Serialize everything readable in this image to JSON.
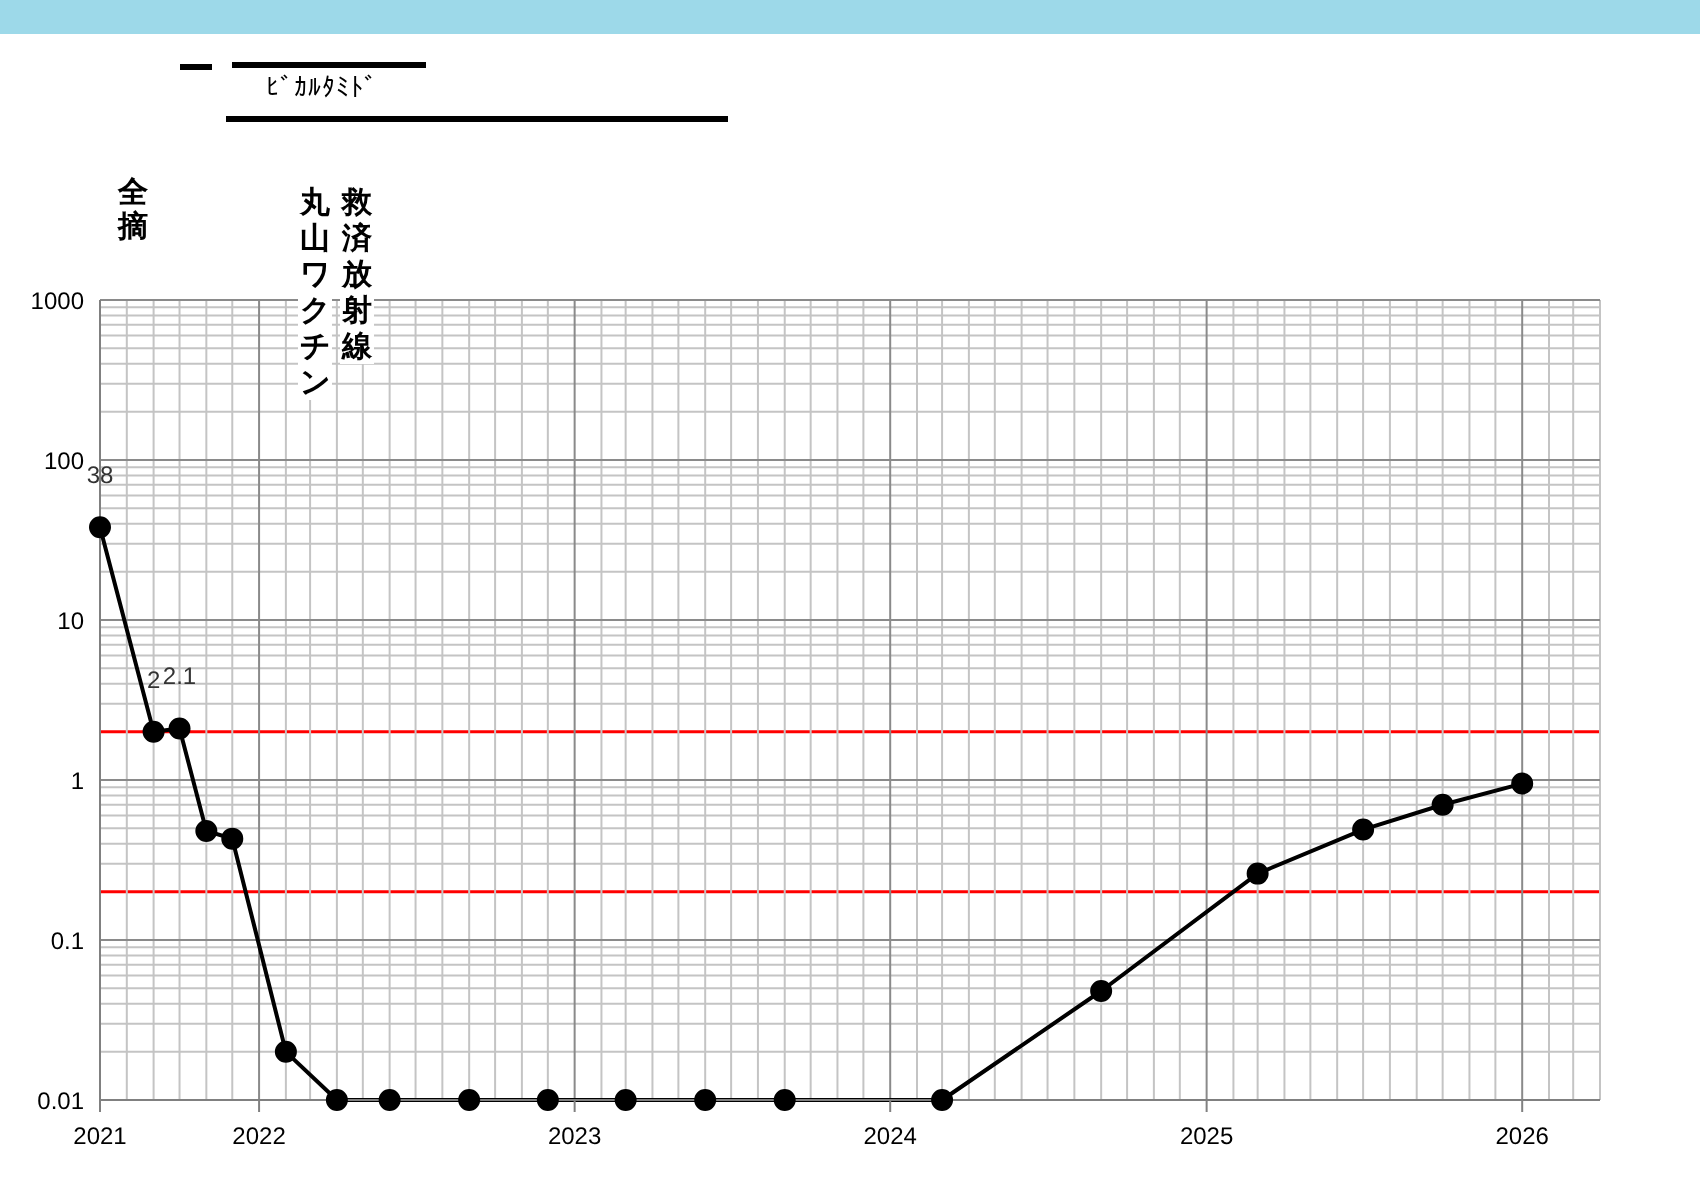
{
  "chart_data": {
    "type": "line",
    "annotations": [
      "ﾋﾞｶﾙﾀﾐﾄﾞ",
      "全摘",
      "丸山ワクチン",
      "救済放射線"
    ],
    "x": [
      "2021-07",
      "2021-09",
      "2021-10",
      "2021-11",
      "2021-12",
      "2022-02",
      "2022-04",
      "2022-06",
      "2022-09",
      "2022-12",
      "2023-03",
      "2023-06",
      "2023-09",
      "2024-03",
      "2024-09",
      "2025-03",
      "2025-07",
      "2025-10",
      "2026-01"
    ],
    "values": [
      38,
      2,
      2.1,
      0.48,
      0.43,
      0.02,
      0.01,
      0.01,
      0.01,
      0.01,
      0.01,
      0.01,
      0.01,
      0.01,
      0.048,
      0.26,
      0.49,
      0.7,
      0.95
    ],
    "value_labels": [
      "38",
      "2",
      "2.1",
      null,
      null,
      null,
      null,
      null,
      null,
      null,
      null,
      null,
      null,
      null,
      null,
      null,
      null,
      null,
      null
    ],
    "color": "#000000",
    "xlim": [
      "2021-07",
      "2026-04"
    ],
    "xticks": [
      {
        "value": "2021-07",
        "label": "2021"
      },
      {
        "value": "2021-08",
        "label": null
      },
      {
        "value": "2021-09",
        "label": null
      },
      {
        "value": "2021-10",
        "label": null
      },
      {
        "value": "2021-11",
        "label": null
      },
      {
        "value": "2021-12",
        "label": null
      },
      {
        "value": "2022-01",
        "label": "2022"
      },
      {
        "value": "2022-02",
        "label": null
      },
      {
        "value": "2022-03",
        "label": null
      },
      {
        "value": "2022-04",
        "label": null
      },
      {
        "value": "2022-05",
        "label": null
      },
      {
        "value": "2022-06",
        "label": null
      },
      {
        "value": "2022-07",
        "label": null
      },
      {
        "value": "2022-08",
        "label": null
      },
      {
        "value": "2022-09",
        "label": null
      },
      {
        "value": "2022-10",
        "label": null
      },
      {
        "value": "2022-11",
        "label": null
      },
      {
        "value": "2022-12",
        "label": null
      },
      {
        "value": "2023-01",
        "label": "2023"
      },
      {
        "value": "2023-02",
        "label": null
      },
      {
        "value": "2023-03",
        "label": null
      },
      {
        "value": "2023-04",
        "label": null
      },
      {
        "value": "2023-05",
        "label": null
      },
      {
        "value": "2023-06",
        "label": null
      },
      {
        "value": "2023-07",
        "label": null
      },
      {
        "value": "2023-08",
        "label": null
      },
      {
        "value": "2023-09",
        "label": null
      },
      {
        "value": "2023-10",
        "label": null
      },
      {
        "value": "2023-11",
        "label": null
      },
      {
        "value": "2023-12",
        "label": null
      },
      {
        "value": "2024-01",
        "label": "2024"
      },
      {
        "value": "2024-02",
        "label": null
      },
      {
        "value": "2024-03",
        "label": null
      },
      {
        "value": "2024-04",
        "label": null
      },
      {
        "value": "2024-05",
        "label": null
      },
      {
        "value": "2024-06",
        "label": null
      },
      {
        "value": "2024-07",
        "label": null
      },
      {
        "value": "2024-08",
        "label": null
      },
      {
        "value": "2024-09",
        "label": null
      },
      {
        "value": "2024-10",
        "label": null
      },
      {
        "value": "2024-11",
        "label": null
      },
      {
        "value": "2024-12",
        "label": null
      },
      {
        "value": "2025-01",
        "label": "2025"
      },
      {
        "value": "2025-02",
        "label": null
      },
      {
        "value": "2025-03",
        "label": null
      },
      {
        "value": "2025-04",
        "label": null
      },
      {
        "value": "2025-05",
        "label": null
      },
      {
        "value": "2025-06",
        "label": null
      },
      {
        "value": "2025-07",
        "label": null
      },
      {
        "value": "2025-08",
        "label": null
      },
      {
        "value": "2025-09",
        "label": null
      },
      {
        "value": "2025-10",
        "label": null
      },
      {
        "value": "2025-11",
        "label": null
      },
      {
        "value": "2025-12",
        "label": null
      },
      {
        "value": "2026-01",
        "label": "2026"
      },
      {
        "value": "2026-02",
        "label": null
      },
      {
        "value": "2026-03",
        "label": null
      },
      {
        "value": "2026-04",
        "label": null
      }
    ],
    "ylim": [
      0.01,
      1000
    ],
    "yticks": [
      0.01,
      {
        "value": 0.02,
        "label": null
      },
      {
        "value": 0.03,
        "label": null
      },
      {
        "value": 0.04,
        "label": null
      },
      {
        "value": 0.05,
        "label": null
      },
      {
        "value": 0.06,
        "label": null
      },
      {
        "value": 0.07,
        "label": null
      },
      {
        "value": 0.08,
        "label": null
      },
      {
        "value": 0.09,
        "label": null
      },
      0.1,
      {
        "value": 0.3,
        "label": null
      },
      {
        "value": 0.4,
        "label": null
      },
      {
        "value": 0.5,
        "label": null
      },
      {
        "value": 0.6,
        "label": null
      },
      {
        "value": 0.7,
        "label": null
      },
      {
        "value": 0.8,
        "label": null
      },
      {
        "value": 0.9,
        "label": null
      },
      1,
      {
        "value": 3,
        "label": null
      },
      {
        "value": 4,
        "label": null
      },
      {
        "value": 5,
        "label": null
      },
      {
        "value": 6,
        "label": null
      },
      {
        "value": 7,
        "label": null
      },
      {
        "value": 8,
        "label": null
      },
      {
        "value": 9,
        "label": null
      },
      10,
      {
        "value": 20,
        "label": null
      },
      {
        "value": 30,
        "label": null
      },
      {
        "value": 40,
        "label": null
      },
      {
        "value": 50,
        "label": null
      },
      {
        "value": 60,
        "label": null
      },
      {
        "value": 70,
        "label": null
      },
      {
        "value": 80,
        "label": null
      },
      {
        "value": 90,
        "label": null
      },
      100,
      {
        "value": 200,
        "label": null
      },
      {
        "value": 300,
        "label": null
      },
      {
        "value": 400,
        "label": null
      },
      {
        "value": 500,
        "label": null
      },
      {
        "value": 600,
        "label": null
      },
      {
        "value": 700,
        "label": null
      },
      {
        "value": 800,
        "label": null
      },
      {
        "value": 900,
        "label": null
      },
      1000
    ],
    "log": true,
    "grid": true,
    "marker": "circle",
    "line_style": "solid",
    "ref_lines": [
      {
        "axis": "y",
        "value": 2,
        "color": "#ff0000"
      },
      {
        "axis": "y",
        "value": 0.2,
        "color": "#ff0000"
      }
    ]
  }
}
